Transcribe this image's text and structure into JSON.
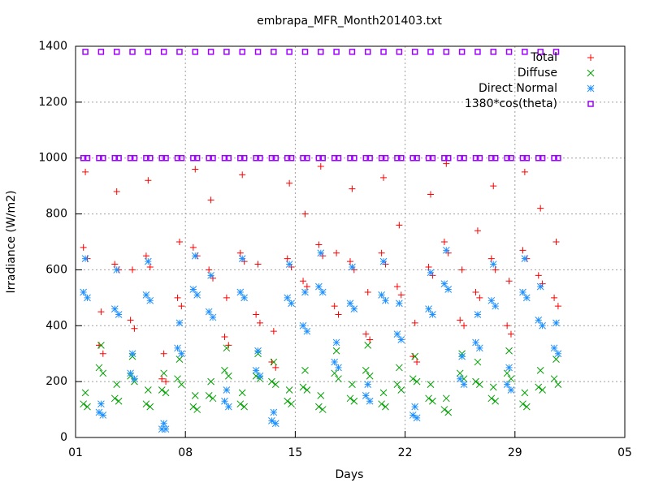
{
  "chart_data": {
    "type": "scatter",
    "title": "embrapa_MFR_Month201403.txt",
    "x_label": "Days",
    "y_label": "Irradiance (W/m2)",
    "xlim": [
      0,
      35
    ],
    "ylim": [
      0,
      1400
    ],
    "xticks": [
      {
        "value": 0,
        "label": "01"
      },
      {
        "value": 7,
        "label": "08"
      },
      {
        "value": 14,
        "label": "15"
      },
      {
        "value": 21,
        "label": "22"
      },
      {
        "value": 28,
        "label": "29"
      },
      {
        "value": 35,
        "label": "05"
      }
    ],
    "yticks": [
      0,
      200,
      400,
      600,
      800,
      1000,
      1200,
      1400
    ],
    "grid": true,
    "legend": "top-right",
    "x": [
      0.5,
      0.625,
      0.75,
      1.5,
      1.625,
      1.75,
      2.5,
      2.625,
      2.75,
      3.5,
      3.625,
      3.75,
      4.5,
      4.625,
      4.75,
      5.5,
      5.625,
      5.75,
      6.5,
      6.625,
      6.75,
      7.5,
      7.625,
      7.75,
      8.5,
      8.625,
      8.75,
      9.5,
      9.625,
      9.75,
      10.5,
      10.625,
      10.75,
      11.5,
      11.625,
      11.75,
      12.5,
      12.625,
      12.75,
      13.5,
      13.625,
      13.75,
      14.5,
      14.625,
      14.75,
      15.5,
      15.625,
      15.75,
      16.5,
      16.625,
      16.75,
      17.5,
      17.625,
      17.75,
      18.5,
      18.625,
      18.75,
      19.5,
      19.625,
      19.75,
      20.5,
      20.625,
      20.75,
      21.5,
      21.625,
      21.75,
      22.5,
      22.625,
      22.75,
      23.5,
      23.625,
      23.75,
      24.5,
      24.625,
      24.75,
      25.5,
      25.625,
      25.75,
      26.5,
      26.625,
      26.75,
      27.5,
      27.625,
      27.75,
      28.5,
      28.625,
      28.75,
      29.5,
      29.625,
      29.75,
      30.5,
      30.625,
      30.75
    ],
    "series": [
      {
        "name": "Total",
        "color": "#ff0000",
        "marker": "plus",
        "values": [
          680,
          950,
          640,
          330,
          450,
          300,
          620,
          880,
          600,
          420,
          600,
          390,
          650,
          920,
          610,
          210,
          300,
          200,
          500,
          700,
          470,
          680,
          960,
          650,
          600,
          850,
          570,
          360,
          500,
          330,
          660,
          940,
          630,
          440,
          620,
          410,
          270,
          380,
          250,
          640,
          910,
          610,
          560,
          800,
          540,
          690,
          970,
          650,
          470,
          660,
          440,
          630,
          890,
          600,
          370,
          520,
          350,
          660,
          930,
          620,
          540,
          760,
          510,
          290,
          410,
          270,
          610,
          870,
          580,
          700,
          980,
          660,
          420,
          600,
          400,
          520,
          740,
          500,
          640,
          900,
          600,
          400,
          560,
          370,
          670,
          950,
          640,
          580,
          820,
          550,
          500,
          700,
          470
        ]
      },
      {
        "name": "Diffuse",
        "color": "#00a000",
        "marker": "cross",
        "values": [
          120,
          160,
          110,
          250,
          330,
          230,
          140,
          190,
          130,
          220,
          290,
          200,
          120,
          170,
          110,
          170,
          230,
          160,
          210,
          280,
          190,
          110,
          150,
          100,
          150,
          200,
          140,
          240,
          320,
          220,
          120,
          160,
          110,
          220,
          300,
          210,
          200,
          270,
          190,
          130,
          170,
          120,
          180,
          240,
          170,
          110,
          150,
          100,
          230,
          310,
          210,
          140,
          190,
          130,
          240,
          330,
          220,
          120,
          160,
          110,
          190,
          250,
          170,
          210,
          290,
          200,
          140,
          190,
          130,
          100,
          140,
          90,
          230,
          300,
          210,
          200,
          270,
          190,
          140,
          180,
          130,
          230,
          310,
          210,
          120,
          160,
          110,
          180,
          240,
          170,
          210,
          280,
          190
        ]
      },
      {
        "name": "Direct Normal",
        "color": "#1e90ff",
        "marker": "star",
        "values": [
          520,
          640,
          500,
          90,
          120,
          80,
          460,
          600,
          440,
          230,
          300,
          210,
          510,
          630,
          490,
          30,
          50,
          30,
          320,
          410,
          300,
          530,
          650,
          510,
          450,
          580,
          430,
          130,
          170,
          110,
          520,
          640,
          500,
          240,
          310,
          220,
          60,
          90,
          50,
          500,
          620,
          480,
          400,
          520,
          380,
          540,
          660,
          520,
          270,
          340,
          250,
          480,
          610,
          460,
          150,
          190,
          130,
          510,
          630,
          490,
          370,
          480,
          350,
          80,
          110,
          70,
          460,
          590,
          440,
          550,
          670,
          530,
          210,
          290,
          190,
          340,
          440,
          320,
          490,
          620,
          470,
          190,
          250,
          170,
          520,
          640,
          500,
          420,
          540,
          400,
          320,
          410,
          300
        ]
      },
      {
        "name": "1380*cos(theta)",
        "color": "#a000ff",
        "marker": "square",
        "values": [
          1000,
          1380,
          1000,
          1000,
          1380,
          1000,
          1000,
          1380,
          1000,
          1000,
          1380,
          1000,
          1000,
          1380,
          1000,
          1000,
          1380,
          1000,
          1000,
          1380,
          1000,
          1000,
          1380,
          1000,
          1000,
          1380,
          1000,
          1000,
          1380,
          1000,
          1000,
          1380,
          1000,
          1000,
          1380,
          1000,
          1000,
          1380,
          1000,
          1000,
          1380,
          1000,
          1000,
          1380,
          1000,
          1000,
          1380,
          1000,
          1000,
          1380,
          1000,
          1000,
          1380,
          1000,
          1000,
          1380,
          1000,
          1000,
          1380,
          1000,
          1000,
          1380,
          1000,
          1000,
          1380,
          1000,
          1000,
          1380,
          1000,
          1000,
          1380,
          1000,
          1000,
          1380,
          1000,
          1000,
          1380,
          1000,
          1000,
          1380,
          1000,
          1000,
          1380,
          1000,
          1000,
          1380,
          1000,
          1000,
          1380,
          1000,
          1000,
          1380,
          1000
        ]
      }
    ]
  }
}
